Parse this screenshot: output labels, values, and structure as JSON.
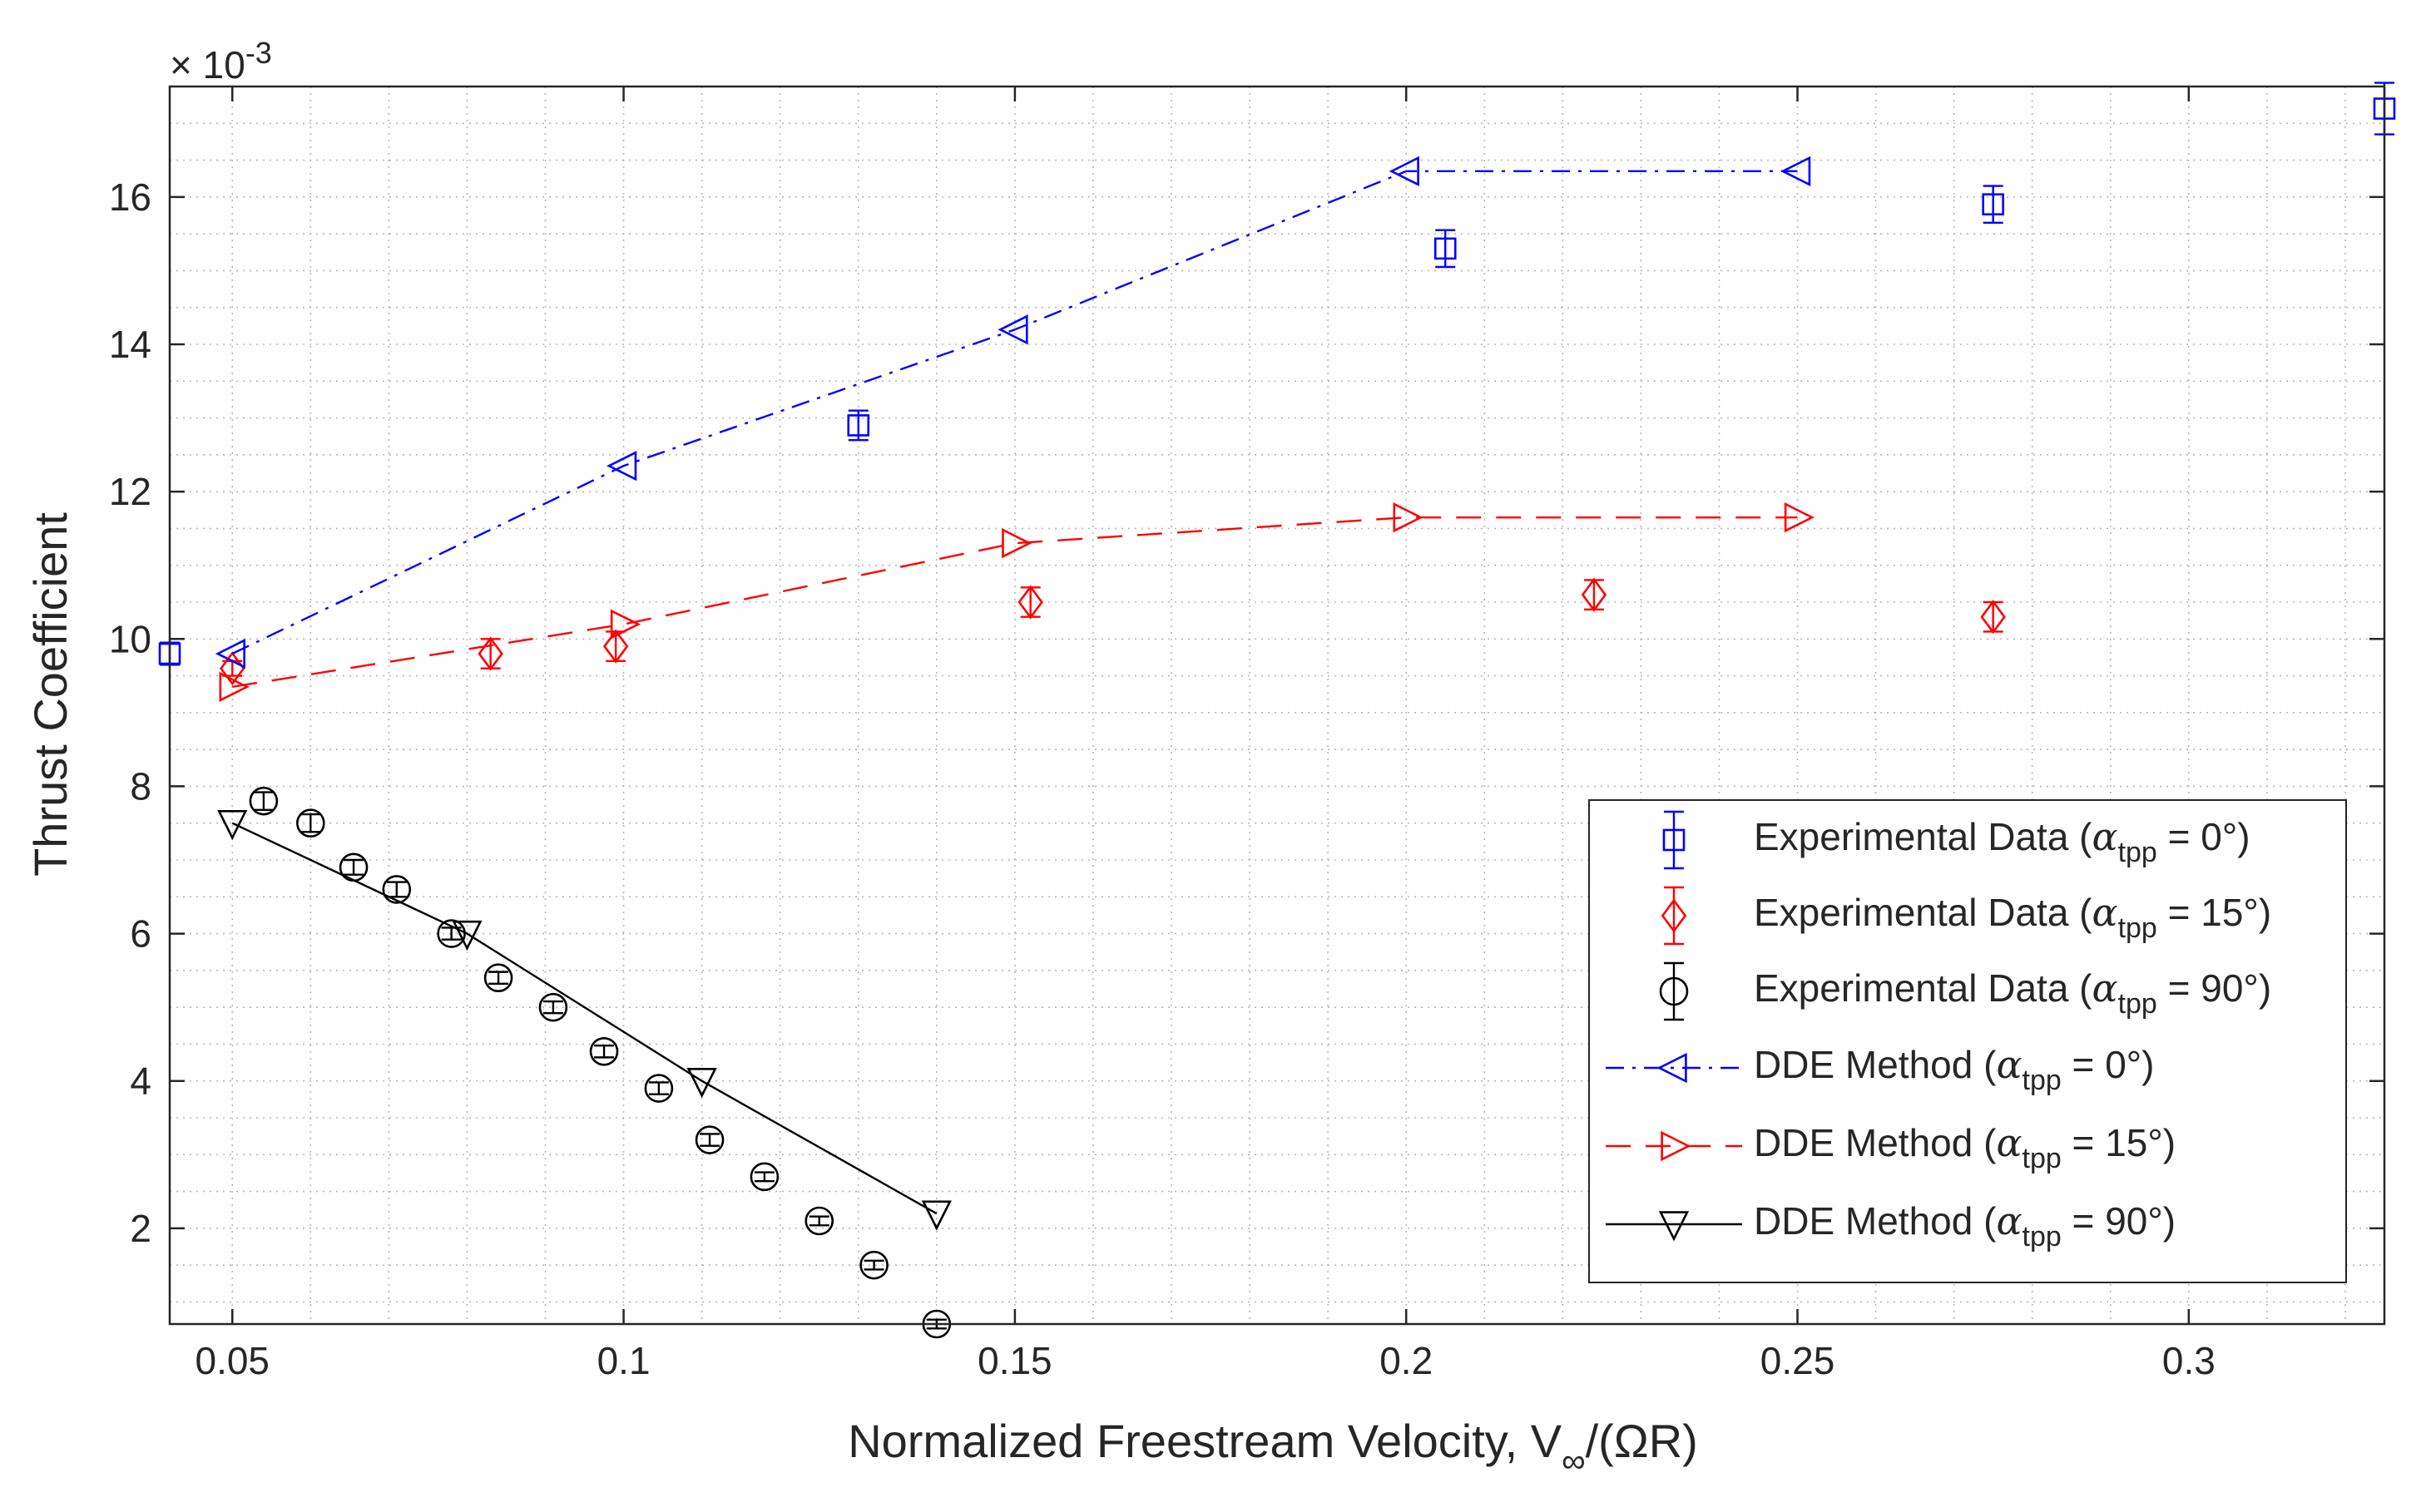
{
  "chart_data": {
    "type": "scatter",
    "xlabel": "Normalized Freestream Velocity, V∞/(ΩR)",
    "xlabel_parts": {
      "main": "Normalized Freestream Velocity, V",
      "sub": "∞",
      "tail": "/(ΩR)"
    },
    "ylabel": "Thrust Coefficient",
    "y_exponent_label": "× 10",
    "y_exponent": "-3",
    "xlim": [
      0.042,
      0.325
    ],
    "ylim": [
      0.7,
      17.5
    ],
    "xticks": [
      0.05,
      0.1,
      0.15,
      0.2,
      0.25,
      0.3
    ],
    "xtick_labels": [
      "0.05",
      "0.1",
      "0.15",
      "0.2",
      "0.25",
      "0.3"
    ],
    "yticks": [
      2,
      4,
      6,
      8,
      10,
      12,
      14,
      16
    ],
    "ytick_labels": [
      "2",
      "4",
      "6",
      "8",
      "10",
      "12",
      "14",
      "16"
    ],
    "grid": "major-and-minor dotted",
    "legend_position": "bottom-right",
    "series": [
      {
        "name": "Experimental Data (αtpp = 0°)",
        "label_parts": {
          "pre": "Experimental Data (",
          "sym": "α",
          "sub": "tpp",
          "post": " = 0°)"
        },
        "kind": "errorbar",
        "marker": "square",
        "color": "#0000ff",
        "line": "none",
        "x": [
          0.042,
          0.13,
          0.205,
          0.275,
          0.325
        ],
        "y": [
          9.8,
          12.9,
          15.3,
          15.9,
          17.2
        ],
        "err": [
          0.15,
          0.2,
          0.25,
          0.25,
          0.35
        ]
      },
      {
        "name": "Experimental Data (αtpp = 15°)",
        "label_parts": {
          "pre": "Experimental Data (",
          "sym": "α",
          "sub": "tpp",
          "post": " = 15°)"
        },
        "kind": "errorbar",
        "marker": "diamond",
        "color": "#ff0000",
        "line": "none",
        "x": [
          0.05,
          0.083,
          0.099,
          0.152,
          0.224,
          0.275
        ],
        "y": [
          9.6,
          9.8,
          9.9,
          10.5,
          10.6,
          10.3
        ],
        "err": [
          0.1,
          0.2,
          0.2,
          0.2,
          0.2,
          0.2
        ]
      },
      {
        "name": "Experimental Data (αtpp = 90°)",
        "label_parts": {
          "pre": "Experimental Data (",
          "sym": "α",
          "sub": "tpp",
          "post": " = 90°)"
        },
        "kind": "errorbar",
        "marker": "circle",
        "color": "#000000",
        "line": "none",
        "x": [
          0.054,
          0.06,
          0.0655,
          0.071,
          0.078,
          0.084,
          0.091,
          0.0975,
          0.1045,
          0.111,
          0.118,
          0.125,
          0.132,
          0.14
        ],
        "y": [
          7.8,
          7.5,
          6.9,
          6.6,
          6.0,
          5.4,
          5.0,
          4.4,
          3.9,
          3.2,
          2.7,
          2.1,
          1.5,
          0.7
        ],
        "err": [
          0.12,
          0.12,
          0.1,
          0.1,
          0.08,
          0.08,
          0.08,
          0.08,
          0.08,
          0.08,
          0.06,
          0.06,
          0.06,
          0.06
        ]
      },
      {
        "name": "DDE Method (αtpp = 0°)",
        "label_parts": {
          "pre": "DDE Method (",
          "sym": "α",
          "sub": "tpp",
          "post": " = 0°)"
        },
        "kind": "line",
        "marker": "triangle-left",
        "color": "#0000ff",
        "line": "dashdot",
        "x": [
          0.05,
          0.1,
          0.15,
          0.2,
          0.25
        ],
        "y": [
          9.8,
          12.35,
          14.2,
          16.35,
          16.35
        ]
      },
      {
        "name": "DDE Method (αtpp = 15°)",
        "label_parts": {
          "pre": "DDE Method (",
          "sym": "α",
          "sub": "tpp",
          "post": " = 15°)"
        },
        "kind": "line",
        "marker": "triangle-right",
        "color": "#ff0000",
        "line": "dashed",
        "x": [
          0.05,
          0.1,
          0.15,
          0.2,
          0.25
        ],
        "y": [
          9.35,
          10.2,
          11.3,
          11.65,
          11.65
        ]
      },
      {
        "name": "DDE Method (αtpp = 90°)",
        "label_parts": {
          "pre": "DDE Method (",
          "sym": "α",
          "sub": "tpp",
          "post": " = 90°)"
        },
        "kind": "line",
        "marker": "triangle-down",
        "color": "#000000",
        "line": "solid",
        "x": [
          0.05,
          0.08,
          0.11,
          0.14
        ],
        "y": [
          7.5,
          6.0,
          4.0,
          2.2
        ]
      }
    ]
  }
}
